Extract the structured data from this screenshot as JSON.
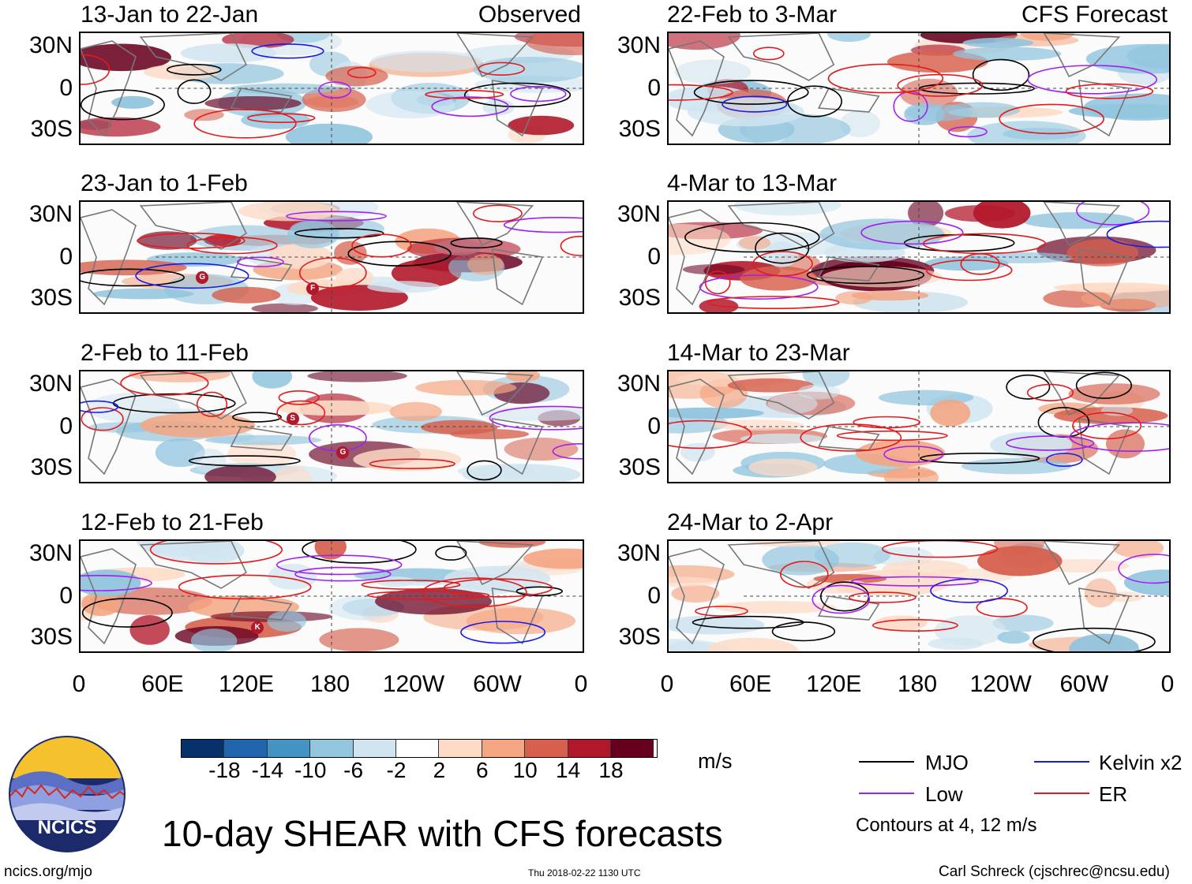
{
  "left_column": {
    "tag": "Observed",
    "panels": [
      {
        "title": "13-Jan to 22-Jan"
      },
      {
        "title": "23-Jan to 1-Feb"
      },
      {
        "title": "2-Feb to 11-Feb"
      },
      {
        "title": "12-Feb to 21-Feb"
      }
    ]
  },
  "right_column": {
    "tag": "CFS Forecast",
    "panels": [
      {
        "title": "22-Feb to 3-Mar"
      },
      {
        "title": "4-Mar to 13-Mar"
      },
      {
        "title": "14-Mar to 23-Mar"
      },
      {
        "title": "24-Mar to 2-Apr"
      }
    ]
  },
  "lat_labels": [
    "30N",
    "0",
    "30S"
  ],
  "lon_labels": [
    "0",
    "60E",
    "120E",
    "180",
    "120W",
    "60W",
    "0"
  ],
  "storm_markers": [
    "G",
    "F",
    "S",
    "G",
    "K"
  ],
  "colorbar": {
    "colors": [
      "#08306b",
      "#2166ac",
      "#4393c3",
      "#92c5de",
      "#d1e5f0",
      "#ffffff",
      "#fddbc7",
      "#f4a582",
      "#d6604d",
      "#b2182b",
      "#67001f"
    ],
    "ticks": [
      "-18",
      "-14",
      "-10",
      "-6",
      "-2",
      "2",
      "6",
      "10",
      "14",
      "18"
    ],
    "units": "m/s"
  },
  "legend": {
    "items": [
      {
        "label": "MJO",
        "color": "#000000"
      },
      {
        "label": "Kelvin x2",
        "color": "#1a1ae6"
      },
      {
        "label": "Low",
        "color": "#a020f0"
      },
      {
        "label": "ER",
        "color": "#e31a1c"
      }
    ],
    "note": "Contours at 4, 12 m/s"
  },
  "main_title": "10-day SHEAR with CFS forecasts",
  "logo_text": "NCICS",
  "footer": {
    "left": "ncics.org/mjo",
    "center": "Thu 2018-02-22 1130 UTC",
    "right": "Carl Schreck (cjschrec@ncsu.edu)"
  }
}
